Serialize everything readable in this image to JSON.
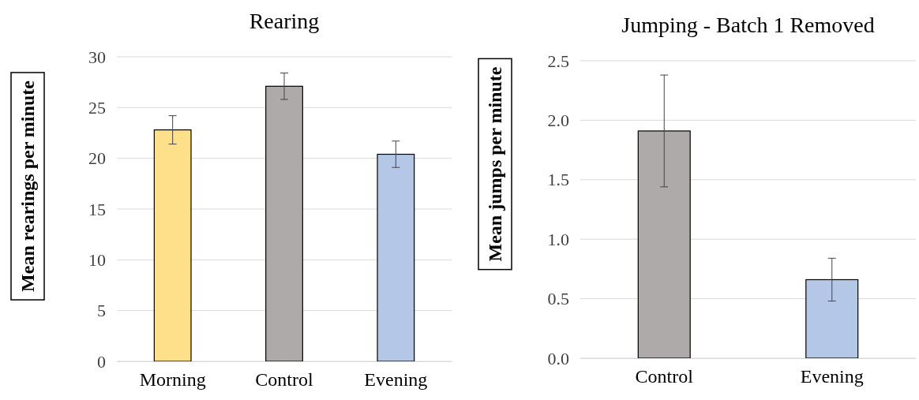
{
  "chart_data": [
    {
      "type": "bar",
      "title": "Rearing",
      "ylabel": "Mean rearings per minute",
      "categories": [
        "Morning",
        "Control",
        "Evening"
      ],
      "values": [
        22.8,
        27.1,
        20.4
      ],
      "errors": [
        1.4,
        1.3,
        1.3
      ],
      "colors": [
        "#ffe08a",
        "#aeaaaa",
        "#b4c7e7"
      ],
      "ylim": [
        0,
        30
      ],
      "yticks": [
        0,
        5,
        10,
        15,
        20,
        25,
        30
      ],
      "grid": "y"
    },
    {
      "type": "bar",
      "title": "Jumping - Batch 1 Removed",
      "ylabel": "Mean jumps per minute",
      "categories": [
        "Control",
        "Evening"
      ],
      "values": [
        1.91,
        0.66
      ],
      "errors": [
        0.47,
        0.18
      ],
      "colors": [
        "#aeaaaa",
        "#b4c7e7"
      ],
      "ylim": [
        0,
        2.5
      ],
      "yticks": [
        {
          "value": 0,
          "label": "0.0"
        },
        {
          "value": 0.5,
          "label": "0.5"
        },
        {
          "value": 1,
          "label": "1.0"
        },
        {
          "value": 1.5,
          "label": "1.5"
        },
        {
          "value": 2,
          "label": "2.0"
        },
        {
          "value": 2.5,
          "label": "2.5"
        }
      ],
      "grid": "y"
    }
  ]
}
